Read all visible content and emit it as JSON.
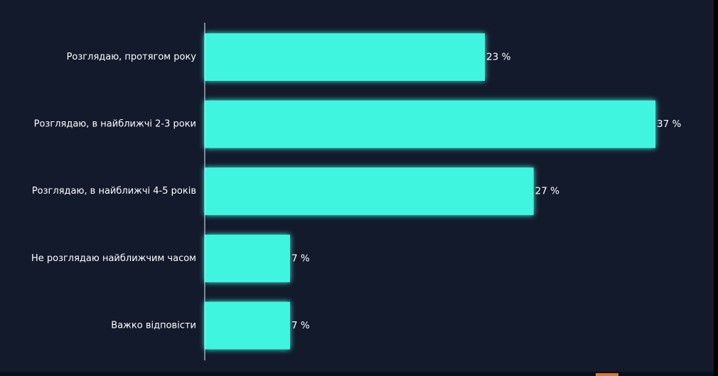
{
  "chart_data": {
    "type": "bar",
    "orientation": "horizontal",
    "categories": [
      "Розглядаю, протягом року",
      "Розглядаю, в найближчі 2-3 роки",
      "Розглядаю, в найближчі 4-5 років",
      "Не розглядаю найближчим часом",
      "Важко відповісти"
    ],
    "values": [
      23,
      37,
      27,
      7,
      7
    ],
    "value_labels": [
      "23 %",
      "37 %",
      "27 %",
      "7 %",
      "7 %"
    ],
    "unit": "%",
    "xlim": [
      0,
      37
    ],
    "grid": false,
    "legend": "none"
  },
  "colors": {
    "background": "#121a2c",
    "bar": "#3ff5df",
    "axis": "#e8eef5",
    "text": "#ffffff",
    "accent_mark": "#d9782f"
  }
}
